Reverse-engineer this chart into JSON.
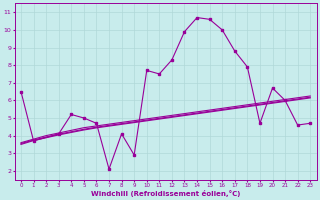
{
  "xlabel": "Windchill (Refroidissement éolien,°C)",
  "background_color": "#c8ecec",
  "grid_color": "#b0d8d8",
  "line_color": "#990099",
  "xlim": [
    -0.5,
    23.5
  ],
  "ylim": [
    1.5,
    11.5
  ],
  "xticks": [
    0,
    1,
    2,
    3,
    4,
    5,
    6,
    7,
    8,
    9,
    10,
    11,
    12,
    13,
    14,
    15,
    16,
    17,
    18,
    19,
    20,
    21,
    22,
    23
  ],
  "yticks": [
    2,
    3,
    4,
    5,
    6,
    7,
    8,
    9,
    10,
    11
  ],
  "series1_x": [
    0,
    1,
    3,
    4,
    5,
    6,
    7,
    8,
    9,
    10,
    11,
    12,
    13,
    14,
    15,
    16,
    17,
    18,
    19,
    20,
    21,
    22,
    23
  ],
  "series1_y": [
    6.5,
    3.7,
    4.1,
    5.2,
    5.0,
    4.7,
    2.1,
    4.1,
    2.9,
    7.7,
    7.5,
    8.3,
    9.9,
    10.7,
    10.6,
    10.0,
    8.8,
    7.9,
    4.7,
    6.7,
    6.0,
    4.6,
    4.7
  ],
  "series2_x": [
    0,
    1,
    2,
    3,
    4,
    5,
    6,
    7,
    8,
    9,
    10,
    11,
    12,
    13,
    14,
    15,
    16,
    17,
    18,
    19,
    20,
    21,
    22,
    23
  ],
  "series2_y": [
    3.6,
    3.8,
    4.0,
    4.15,
    4.3,
    4.45,
    4.55,
    4.65,
    4.75,
    4.85,
    4.95,
    5.05,
    5.15,
    5.25,
    5.35,
    5.45,
    5.55,
    5.65,
    5.75,
    5.85,
    5.95,
    6.05,
    6.15,
    6.25
  ],
  "series3_x": [
    0,
    1,
    2,
    3,
    4,
    5,
    6,
    7,
    8,
    9,
    10,
    11,
    12,
    13,
    14,
    15,
    16,
    17,
    18,
    19,
    20,
    21,
    22,
    23
  ],
  "series3_y": [
    3.55,
    3.75,
    3.92,
    4.08,
    4.22,
    4.36,
    4.48,
    4.58,
    4.68,
    4.78,
    4.88,
    4.98,
    5.08,
    5.18,
    5.28,
    5.38,
    5.48,
    5.58,
    5.68,
    5.78,
    5.88,
    5.98,
    6.08,
    6.18
  ],
  "series4_x": [
    0,
    1,
    2,
    3,
    4,
    5,
    6,
    7,
    8,
    9,
    10,
    11,
    12,
    13,
    14,
    15,
    16,
    17,
    18,
    19,
    20,
    21,
    22,
    23
  ],
  "series4_y": [
    3.5,
    3.72,
    3.88,
    4.04,
    4.18,
    4.32,
    4.44,
    4.54,
    4.64,
    4.74,
    4.84,
    4.94,
    5.04,
    5.14,
    5.24,
    5.34,
    5.44,
    5.54,
    5.64,
    5.74,
    5.84,
    5.94,
    6.04,
    6.14
  ]
}
